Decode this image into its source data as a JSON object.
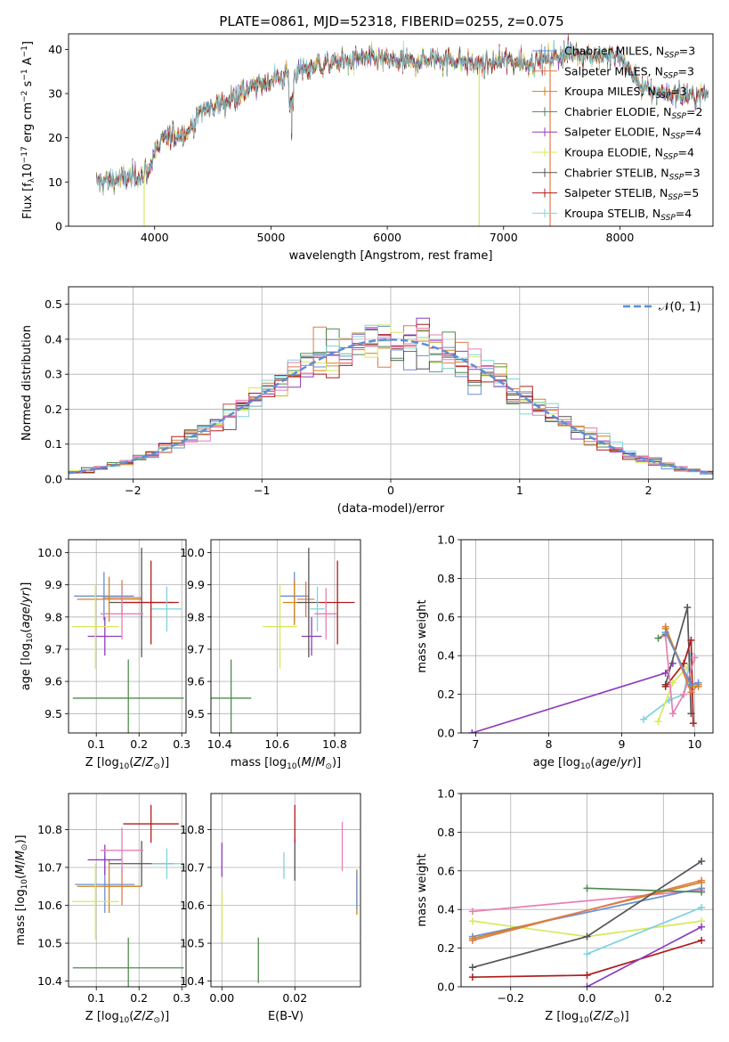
{
  "figure": {
    "title": "PLATE=0861, MJD=52318, FIBERID=0255, z=0.075"
  },
  "colors": {
    "Chabrier MILES": "#6a8fd3",
    "Salpeter MILES": "#e07b4e",
    "Kroupa MILES": "#d1861a",
    "Chabrier ELODIE": "#4f8a4f",
    "Salpeter ELODIE": "#8e3cbf",
    "Kroupa ELODIE": "#d8e85a",
    "Chabrier STELIB": "#555555",
    "Salpeter STELIB": "#b01c1c",
    "Kroupa STELIB": "#7fd3dd",
    "pinkline": "#e57fb5",
    "normal": "#5b8ed8",
    "grid": "#b0b0b0"
  },
  "chart_data": [
    {
      "id": "spectrum",
      "type": "line",
      "xlabel": "wavelength [Angstrom, rest frame]",
      "ylabel": "Flux [f_λ 10^-17 erg cm^-2 s^-1 A^-1]",
      "xlim": [
        3260,
        8800
      ],
      "ylim": [
        0,
        43.5
      ],
      "xticks": [
        4000,
        5000,
        6000,
        7000,
        8000
      ],
      "yticks": [
        0,
        10,
        20,
        30,
        40
      ],
      "grid": false,
      "legend_position": "top-right",
      "continuum": {
        "x": [
          3500,
          3600,
          3800,
          3900,
          3950,
          4000,
          4100,
          4300,
          4400,
          4600,
          4800,
          5000,
          5200,
          5400,
          5600,
          5800,
          6000,
          6200,
          6400,
          6600,
          6800,
          7000,
          7200,
          7400,
          7600,
          7800,
          8000,
          8200,
          8400,
          8600,
          8760
        ],
        "y": [
          10,
          10.5,
          11,
          12,
          14,
          17,
          20,
          21.5,
          26,
          28,
          31,
          33,
          34.5,
          36.5,
          37,
          38,
          37.5,
          37,
          38,
          37.5,
          36.5,
          37.5,
          37,
          38,
          39.5,
          38.5,
          38.5,
          31,
          30,
          29.5,
          30
        ]
      },
      "series": [
        {
          "name": "Chabrier MILES",
          "nssp": "3"
        },
        {
          "name": "Salpeter MILES",
          "nssp": "3"
        },
        {
          "name": "Kroupa MILES",
          "nssp": "3"
        },
        {
          "name": "Chabrier ELODIE",
          "nssp": "2"
        },
        {
          "name": "Salpeter ELODIE",
          "nssp": "4"
        },
        {
          "name": "Kroupa ELODIE",
          "nssp": "4"
        },
        {
          "name": "Chabrier STELIB",
          "nssp": "3"
        },
        {
          "name": "Salpeter STELIB",
          "nssp": "5"
        },
        {
          "name": "Kroupa STELIB",
          "nssp": "4"
        }
      ]
    },
    {
      "id": "residuals",
      "type": "step",
      "xlabel": "(data-model)/error",
      "ylabel": "Normed distribution",
      "xlim": [
        -2.5,
        2.5
      ],
      "ylim": [
        0,
        0.55
      ],
      "xticks": [
        -2,
        -1,
        0,
        1,
        2
      ],
      "yticks": [
        0.0,
        0.1,
        0.2,
        0.3,
        0.4,
        0.5
      ],
      "grid": true,
      "legend_position": "top-right",
      "normal_label": "𝒩(0, 1)",
      "bin_width": 0.1
    },
    {
      "id": "age_vs_Z",
      "type": "errorbar",
      "xlabel": "Z [log10(Z/Z⊙)]",
      "ylabel": "age  [log10(age/yr)]",
      "xlim": [
        0.035,
        0.31
      ],
      "ylim": [
        9.44,
        10.04
      ],
      "xticks": [
        0.1,
        0.2,
        0.3
      ],
      "yticks": [
        9.5,
        9.6,
        9.7,
        9.8,
        9.9,
        10.0
      ],
      "grid": true,
      "points": [
        {
          "series": "Chabrier MILES",
          "x": 0.118,
          "y": 9.865,
          "xerr": 0.07,
          "yerr": 0.075
        },
        {
          "series": "Salpeter MILES",
          "x": 0.16,
          "y": 9.86,
          "xerr": 0.045,
          "yerr": 0.055
        },
        {
          "series": "Kroupa MILES",
          "x": 0.13,
          "y": 9.855,
          "xerr": 0.075,
          "yerr": 0.07
        },
        {
          "series": "Chabrier ELODIE",
          "x": 0.175,
          "y": 9.548,
          "xerr": 0.13,
          "yerr": 0.12
        },
        {
          "series": "Salpeter ELODIE",
          "x": 0.12,
          "y": 9.74,
          "xerr": 0.04,
          "yerr": 0.06
        },
        {
          "series": "Kroupa ELODIE",
          "x": 0.098,
          "y": 9.77,
          "xerr": 0.055,
          "yerr": 0.13
        },
        {
          "series": "Chabrier STELIB",
          "x": 0.206,
          "y": 9.845,
          "xerr": 0.075,
          "yerr": 0.17
        },
        {
          "series": "Salpeter STELIB",
          "x": 0.228,
          "y": 9.845,
          "xerr": 0.065,
          "yerr": 0.13
        },
        {
          "series": "Kroupa STELIB",
          "x": 0.265,
          "y": 9.825,
          "xerr": 0.035,
          "yerr": 0.07
        },
        {
          "series": "pink",
          "x": 0.16,
          "y": 9.81,
          "xerr": 0.05,
          "yerr": 0.08
        }
      ]
    },
    {
      "id": "age_vs_mass",
      "type": "errorbar",
      "xlabel": "mass [log10(M/M⊙)]",
      "ylabel": "",
      "xlim": [
        10.37,
        10.89
      ],
      "ylim": [
        9.44,
        10.04
      ],
      "xticks": [
        10.4,
        10.6,
        10.8
      ],
      "yticks": [
        9.5,
        9.6,
        9.7,
        9.8,
        9.9,
        10.0
      ],
      "grid": true,
      "points": [
        {
          "series": "Chabrier MILES",
          "x": 10.66,
          "y": 9.865,
          "xerr": 0.05,
          "yerr": 0.075
        },
        {
          "series": "Salpeter MILES",
          "x": 10.7,
          "y": 9.855,
          "xerr": 0.03,
          "yerr": 0.055
        },
        {
          "series": "Kroupa MILES",
          "x": 10.66,
          "y": 9.845,
          "xerr": 0.04,
          "yerr": 0.07
        },
        {
          "series": "Chabrier ELODIE",
          "x": 10.44,
          "y": 9.548,
          "xerr": 0.07,
          "yerr": 0.12
        },
        {
          "series": "Salpeter ELODIE",
          "x": 10.72,
          "y": 9.74,
          "xerr": 0.035,
          "yerr": 0.06
        },
        {
          "series": "Kroupa ELODIE",
          "x": 10.61,
          "y": 9.77,
          "xerr": 0.06,
          "yerr": 0.13
        },
        {
          "series": "Chabrier STELIB",
          "x": 10.71,
          "y": 9.845,
          "xerr": 0.04,
          "yerr": 0.17
        },
        {
          "series": "Salpeter STELIB",
          "x": 10.81,
          "y": 9.845,
          "xerr": 0.06,
          "yerr": 0.13
        },
        {
          "series": "Kroupa STELIB",
          "x": 10.74,
          "y": 9.825,
          "xerr": 0.025,
          "yerr": 0.07
        },
        {
          "series": "pink",
          "x": 10.77,
          "y": 9.81,
          "xerr": 0.04,
          "yerr": 0.08
        }
      ]
    },
    {
      "id": "weight_vs_age",
      "type": "line",
      "xlabel": "age  [log10(age/yr)]",
      "ylabel": "mass weight",
      "xlim": [
        6.8,
        10.25
      ],
      "ylim": [
        0,
        1.0
      ],
      "xticks": [
        7,
        8,
        9,
        10
      ],
      "yticks": [
        0.0,
        0.2,
        0.4,
        0.6,
        0.8,
        1.0
      ],
      "grid": true,
      "series": [
        {
          "series": "Salpeter ELODIE",
          "x": [
            6.95,
            9.6,
            9.7
          ],
          "y": [
            0.0,
            0.31,
            0.36
          ]
        },
        {
          "series": "Chabrier ELODIE",
          "x": [
            9.5,
            9.6
          ],
          "y": [
            0.49,
            0.51
          ]
        },
        {
          "series": "Kroupa STELIB",
          "x": [
            9.3,
            9.65,
            9.85,
            9.95
          ],
          "y": [
            0.07,
            0.17,
            0.2,
            0.41
          ]
        },
        {
          "series": "Kroupa ELODIE",
          "x": [
            9.5,
            9.7,
            9.9
          ],
          "y": [
            0.06,
            0.26,
            0.34
          ]
        },
        {
          "series": "Chabrier STELIB",
          "x": [
            9.6,
            9.9,
            9.95
          ],
          "y": [
            0.25,
            0.65,
            0.1
          ]
        },
        {
          "series": "Salpeter STELIB",
          "x": [
            9.6,
            9.85,
            9.95,
            9.98
          ],
          "y": [
            0.24,
            0.36,
            0.48,
            0.05
          ]
        },
        {
          "series": "pink",
          "x": [
            9.6,
            9.7,
            9.85,
            10.0
          ],
          "y": [
            0.5,
            0.1,
            0.2,
            0.39
          ]
        },
        {
          "series": "Salpeter MILES",
          "x": [
            9.6,
            9.95,
            10.05
          ],
          "y": [
            0.55,
            0.21,
            0.25
          ]
        },
        {
          "series": "Kroupa MILES",
          "x": [
            9.6,
            9.95,
            10.05
          ],
          "y": [
            0.54,
            0.24,
            0.24
          ]
        },
        {
          "series": "Chabrier MILES",
          "x": [
            9.6,
            9.95,
            10.05
          ],
          "y": [
            0.52,
            0.25,
            0.26
          ]
        }
      ]
    },
    {
      "id": "mass_vs_Z",
      "type": "errorbar",
      "xlabel": "Z [log10(Z/Z⊙)]",
      "ylabel": "mass [log10(M/M⊙)]",
      "xlim": [
        0.035,
        0.31
      ],
      "ylim": [
        10.385,
        10.895
      ],
      "xticks": [
        0.1,
        0.2,
        0.3
      ],
      "yticks": [
        10.4,
        10.5,
        10.6,
        10.7,
        10.8
      ],
      "grid": true,
      "points": [
        {
          "series": "Chabrier MILES",
          "x": 0.12,
          "y": 10.655,
          "xerr": 0.07,
          "yerr": 0.075
        },
        {
          "series": "Salpeter MILES",
          "x": 0.16,
          "y": 10.65,
          "xerr": 0.045,
          "yerr": 0.05
        },
        {
          "series": "Kroupa MILES",
          "x": 0.13,
          "y": 10.65,
          "xerr": 0.075,
          "yerr": 0.07
        },
        {
          "series": "Chabrier ELODIE",
          "x": 0.175,
          "y": 10.435,
          "xerr": 0.13,
          "yerr": 0.08
        },
        {
          "series": "Salpeter ELODIE",
          "x": 0.12,
          "y": 10.72,
          "xerr": 0.04,
          "yerr": 0.04
        },
        {
          "series": "Kroupa ELODIE",
          "x": 0.098,
          "y": 10.61,
          "xerr": 0.055,
          "yerr": 0.1
        },
        {
          "series": "Chabrier STELIB",
          "x": 0.206,
          "y": 10.71,
          "xerr": 0.075,
          "yerr": 0.06
        },
        {
          "series": "Salpeter STELIB",
          "x": 0.228,
          "y": 10.815,
          "xerr": 0.065,
          "yerr": 0.05
        },
        {
          "series": "Kroupa STELIB",
          "x": 0.265,
          "y": 10.71,
          "xerr": 0.035,
          "yerr": 0.04
        },
        {
          "series": "pink",
          "x": 0.16,
          "y": 10.745,
          "xerr": 0.05,
          "yerr": 0.06
        }
      ]
    },
    {
      "id": "mass_vs_EBV",
      "type": "errorbar",
      "xlabel": "E(B-V)",
      "ylabel": "",
      "xlim": [
        -0.003,
        0.038
      ],
      "ylim": [
        10.385,
        10.895
      ],
      "xticks": [
        0.0,
        0.02
      ],
      "yticks": [
        10.4,
        10.5,
        10.6,
        10.7,
        10.8
      ],
      "grid": true,
      "points": [
        {
          "series": "Salpeter ELODIE",
          "x": 0.0,
          "y": 10.72,
          "xerr": 0.0,
          "yerr": 0.045
        },
        {
          "series": "Kroupa ELODIE",
          "x": 0.0,
          "y": 10.57,
          "xerr": 0.0,
          "yerr": 0.065
        },
        {
          "series": "Chabrier ELODIE",
          "x": 0.01,
          "y": 10.455,
          "xerr": 0.0,
          "yerr": 0.06
        },
        {
          "series": "Kroupa STELIB",
          "x": 0.017,
          "y": 10.705,
          "xerr": 0.0,
          "yerr": 0.035
        },
        {
          "series": "Chabrier STELIB",
          "x": 0.02,
          "y": 10.72,
          "xerr": 0.0,
          "yerr": 0.055
        },
        {
          "series": "Salpeter STELIB",
          "x": 0.02,
          "y": 10.815,
          "xerr": 0.0,
          "yerr": 0.05
        },
        {
          "series": "pink",
          "x": 0.033,
          "y": 10.755,
          "xerr": 0.0,
          "yerr": 0.065
        },
        {
          "series": "Kroupa MILES",
          "x": 0.037,
          "y": 10.635,
          "xerr": 0.0,
          "yerr": 0.06
        },
        {
          "series": "Chabrier MILES",
          "x": 0.037,
          "y": 10.64,
          "xerr": 0.0,
          "yerr": 0.05
        }
      ]
    },
    {
      "id": "weight_vs_Z",
      "type": "line",
      "xlabel": "Z [log10(Z/Z⊙)]",
      "ylabel": "mass weight",
      "xlim": [
        -0.33,
        0.33
      ],
      "ylim": [
        0,
        1.0
      ],
      "xticks": [
        -0.2,
        0.0,
        0.2
      ],
      "yticks": [
        0.0,
        0.2,
        0.4,
        0.6,
        0.8,
        1.0
      ],
      "grid": true,
      "series": [
        {
          "series": "pink",
          "x": [
            -0.3,
            0.3
          ],
          "y": [
            0.39,
            0.5
          ]
        },
        {
          "series": "Kroupa ELODIE",
          "x": [
            -0.3,
            0.0,
            0.3
          ],
          "y": [
            0.34,
            0.26,
            0.34
          ]
        },
        {
          "series": "Chabrier MILES",
          "x": [
            -0.3,
            0.3
          ],
          "y": [
            0.26,
            0.51
          ]
        },
        {
          "series": "Kroupa MILES",
          "x": [
            -0.3,
            0.3
          ],
          "y": [
            0.25,
            0.54
          ]
        },
        {
          "series": "Salpeter MILES",
          "x": [
            -0.3,
            0.3
          ],
          "y": [
            0.24,
            0.55
          ]
        },
        {
          "series": "Chabrier STELIB",
          "x": [
            -0.3,
            0.0,
            0.3
          ],
          "y": [
            0.1,
            0.26,
            0.65
          ]
        },
        {
          "series": "Salpeter STELIB",
          "x": [
            -0.3,
            0.0,
            0.3
          ],
          "y": [
            0.05,
            0.06,
            0.24
          ]
        },
        {
          "series": "Chabrier ELODIE",
          "x": [
            0.0,
            0.3
          ],
          "y": [
            0.51,
            0.49
          ]
        },
        {
          "series": "Kroupa STELIB",
          "x": [
            0.0,
            0.3
          ],
          "y": [
            0.17,
            0.41
          ]
        },
        {
          "series": "Salpeter ELODIE",
          "x": [
            0.0,
            0.3
          ],
          "y": [
            0.0,
            0.31
          ]
        }
      ]
    }
  ]
}
